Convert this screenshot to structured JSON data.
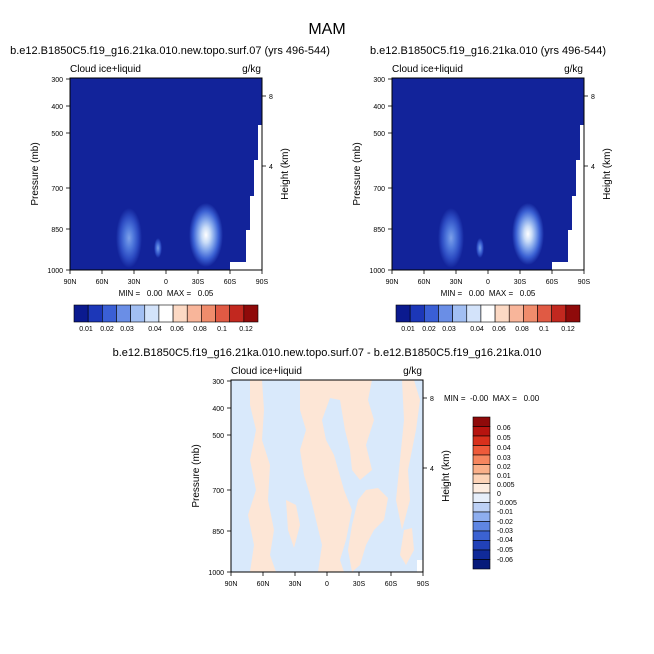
{
  "page_title": "MAM",
  "chart_data": [
    {
      "type": "heatmap",
      "title": "b.e12.B1850C5.f19_g16.21ka.010.new.topo.surf.07 (yrs 496-544)",
      "left_label": "Cloud ice+liquid",
      "right_label": "g/kg",
      "ylabel": "Pressure (mb)",
      "ylabel_right": "Height (km)",
      "x_ticks": [
        "90N",
        "60N",
        "30N",
        "0",
        "30S",
        "60S",
        "90S"
      ],
      "y_ticks": [
        "300",
        "400",
        "500",
        "700",
        "850",
        "1000"
      ],
      "y_ticks_right": [
        "8",
        "4"
      ],
      "stats": "MIN =   0.00  MAX =   0.05",
      "colorbar_labels": [
        "0.01",
        "0.02",
        "0.03",
        "0.04",
        "0.06",
        "0.08",
        "0.1",
        "0.12"
      ],
      "features": [
        {
          "lat": 30,
          "pressure": 870,
          "peak": 0.03
        },
        {
          "lat": -39,
          "pressure": 880,
          "peak": 0.05
        }
      ]
    },
    {
      "type": "heatmap",
      "title": "b.e12.B1850C5.f19_g16.21ka.010 (yrs 496-544)",
      "left_label": "Cloud ice+liquid",
      "right_label": "g/kg",
      "ylabel": "Pressure (mb)",
      "ylabel_right": "Height (km)",
      "x_ticks": [
        "90N",
        "60N",
        "30N",
        "0",
        "30S",
        "60S",
        "90S"
      ],
      "y_ticks": [
        "300",
        "400",
        "500",
        "700",
        "850",
        "1000"
      ],
      "y_ticks_right": [
        "8",
        "4"
      ],
      "stats": "MIN =   0.00  MAX =   0.05",
      "colorbar_labels": [
        "0.01",
        "0.02",
        "0.03",
        "0.04",
        "0.06",
        "0.08",
        "0.1",
        "0.12"
      ],
      "features": [
        {
          "lat": 30,
          "pressure": 870,
          "peak": 0.03
        },
        {
          "lat": -39,
          "pressure": 880,
          "peak": 0.05
        }
      ]
    },
    {
      "type": "heatmap",
      "title": "b.e12.B1850C5.f19_g16.21ka.010.new.topo.surf.07 - b.e12.B1850C5.f19_g16.21ka.010",
      "left_label": "Cloud ice+liquid",
      "right_label": "g/kg",
      "ylabel": "Pressure (mb)",
      "ylabel_right": "Height (km)",
      "x_ticks": [
        "90N",
        "60N",
        "30N",
        "0",
        "30S",
        "60S",
        "90S"
      ],
      "y_ticks": [
        "300",
        "400",
        "500",
        "700",
        "850",
        "1000"
      ],
      "y_ticks_right": [
        "8",
        "4"
      ],
      "stats": "MIN =  -0.00  MAX =   0.00",
      "colorbar_labels": [
        "0.06",
        "0.05",
        "0.04",
        "0.03",
        "0.02",
        "0.01",
        "0.005",
        "0",
        "-0.005",
        "-0.01",
        "-0.02",
        "-0.03",
        "-0.04",
        "-0.05",
        "-0.06"
      ]
    }
  ],
  "colors": {
    "panel_bg": "#12239a",
    "diff_pos": "#fde6d6",
    "diff_neg": "#d9e9fb",
    "sequential": [
      "#0b1a8f",
      "#1c37b8",
      "#3a5fd5",
      "#6a8ee6",
      "#a2bff3",
      "#d3e3fa",
      "#ffffff",
      "#fcd9c4",
      "#f8b59a",
      "#f08c6c",
      "#e05a44",
      "#c2281f",
      "#8f0a0a"
    ],
    "diverging": [
      "#8f0a0a",
      "#b7140f",
      "#d8301c",
      "#ee5a3a",
      "#f6865f",
      "#fab08a",
      "#fdd3b7",
      "#fdece0",
      "#e6eefa",
      "#bcd0f5",
      "#8eaeef",
      "#5f86e3",
      "#3b62d2",
      "#2141b8",
      "#102a99",
      "#061a7a"
    ]
  }
}
